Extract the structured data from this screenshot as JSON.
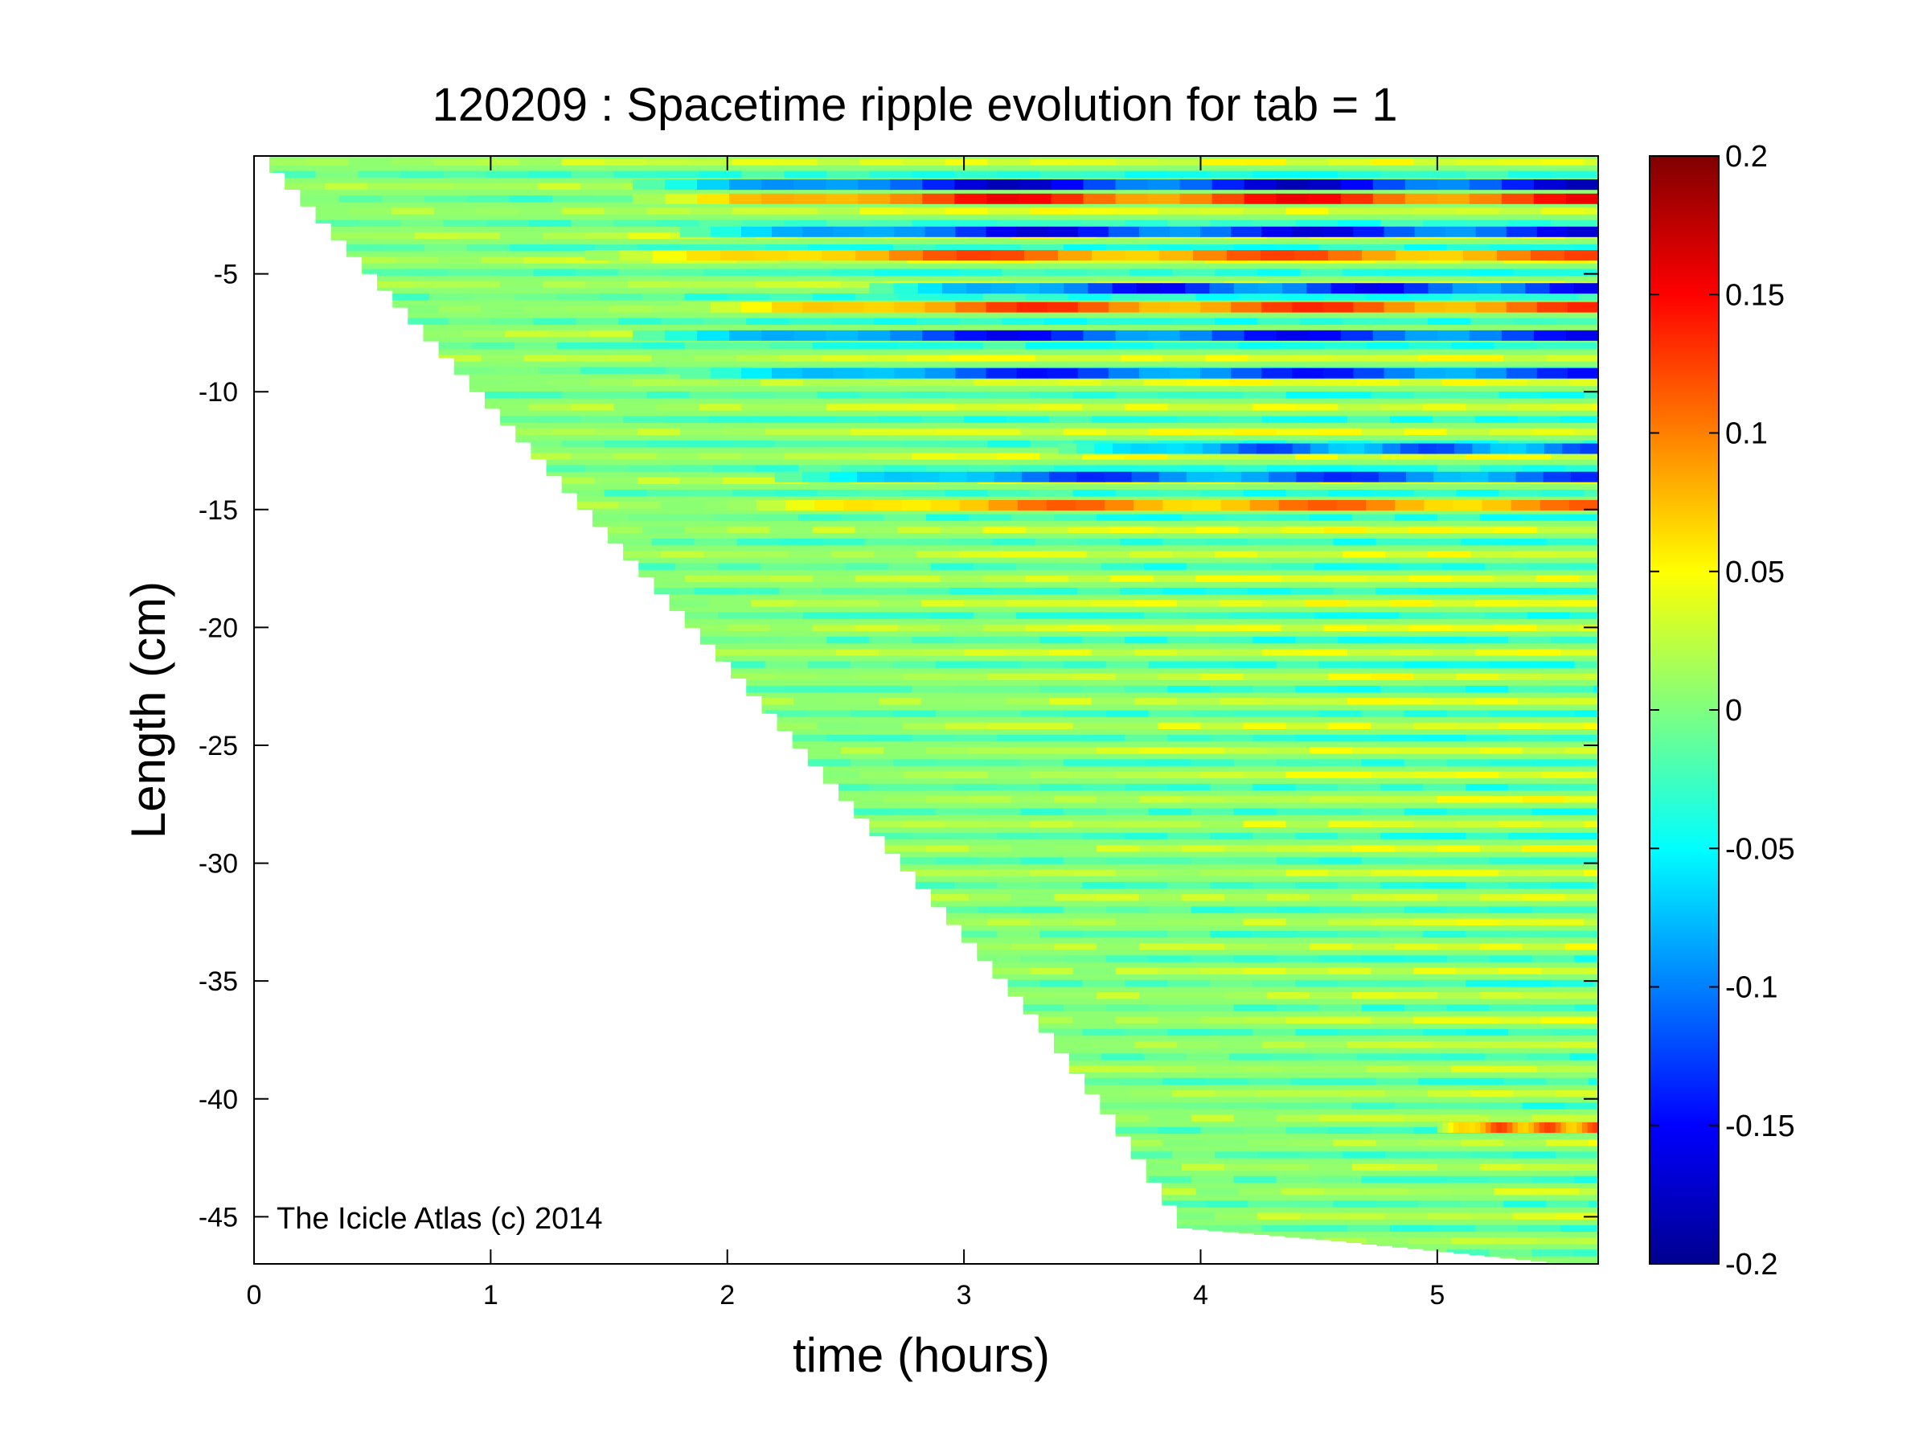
{
  "chart_data": {
    "type": "heatmap",
    "title": "120209 : Spacetime ripple evolution for tab = 1",
    "xlabel": "time (hours)",
    "ylabel": "Length (cm)",
    "xlim": [
      0,
      5.68
    ],
    "ylim": [
      -47,
      0
    ],
    "xticks": [
      0,
      1,
      2,
      3,
      4,
      5
    ],
    "yticks": [
      -5,
      -10,
      -15,
      -20,
      -25,
      -30,
      -35,
      -40,
      -45
    ],
    "grid": false,
    "colormap": "jet",
    "colorbar": {
      "range": [
        -0.2,
        0.2
      ],
      "ticks": [
        0.2,
        0.15,
        0.1,
        0.05,
        0,
        -0.05,
        -0.1,
        -0.15,
        -0.2
      ],
      "placement": "right"
    },
    "annotation": "The Icicle Atlas (c) 2014",
    "growth_front": {
      "description_units": "time (hours) vs length (cm) of icicle tip",
      "t": [
        0,
        1.0,
        2.0,
        2.7,
        3.3,
        3.6,
        3.9,
        4.5,
        5.0,
        5.5,
        5.68
      ],
      "length": [
        0,
        -11,
        -22,
        -30,
        -37,
        -41,
        -45.5,
        -46,
        -46.5,
        -47,
        -47
      ]
    },
    "dominant_bands": [
      {
        "length": -1.8,
        "t_start": 1.6,
        "value": 0.15
      },
      {
        "length": -1.2,
        "t_start": 1.6,
        "value": -0.17
      },
      {
        "length": -3.2,
        "t_start": 1.8,
        "value": -0.16
      },
      {
        "length": -4.2,
        "t_start": 1.4,
        "value": 0.12
      },
      {
        "length": -5.6,
        "t_start": 2.6,
        "value": -0.15
      },
      {
        "length": -6.4,
        "t_start": 1.8,
        "value": 0.13
      },
      {
        "length": -7.6,
        "t_start": 1.6,
        "value": -0.15
      },
      {
        "length": -9.2,
        "t_start": 1.8,
        "value": -0.14
      },
      {
        "length": -12.4,
        "t_start": 3.4,
        "value": -0.12
      },
      {
        "length": -13.6,
        "t_start": 2.2,
        "value": -0.13
      },
      {
        "length": -14.8,
        "t_start": 2.0,
        "value": 0.11
      },
      {
        "length": -41.2,
        "t_start": 5.0,
        "value": 0.12
      }
    ]
  }
}
